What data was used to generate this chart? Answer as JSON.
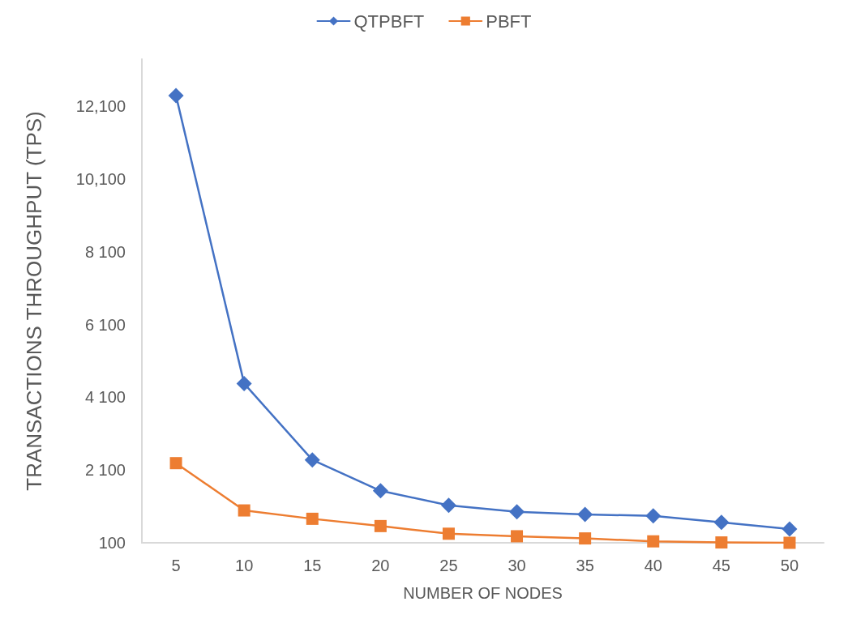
{
  "chart_data": {
    "type": "line",
    "xlabel": "NUMBER OF NODES",
    "ylabel": "TRANSACTIONS THROUGHPUT (TPS)",
    "categories": [
      "5",
      "10",
      "15",
      "20",
      "25",
      "30",
      "35",
      "40",
      "45",
      "50"
    ],
    "series": [
      {
        "name": "QTPBFT",
        "color": "#4472c4",
        "marker": "diamond",
        "values": [
          12400,
          4480,
          2380,
          1530,
          1130,
          950,
          880,
          840,
          660,
          480
        ]
      },
      {
        "name": "PBFT",
        "color": "#ed7d31",
        "marker": "square",
        "values": [
          2290,
          990,
          760,
          560,
          350,
          280,
          220,
          140,
          110,
          100
        ]
      }
    ],
    "ylim": [
      100,
      13400
    ],
    "yticks": [
      100,
      {
        "value": 2100,
        "label": "2 100"
      },
      {
        "value": 4100,
        "label": "4 100"
      },
      {
        "value": 6100,
        "label": "6 100"
      },
      {
        "value": 8100,
        "label": "8 100"
      },
      {
        "value": 10100,
        "label": "10,100"
      },
      {
        "value": 12100,
        "label": "12,100"
      }
    ],
    "grid": false,
    "legend": "top",
    "line_style": "solid"
  }
}
